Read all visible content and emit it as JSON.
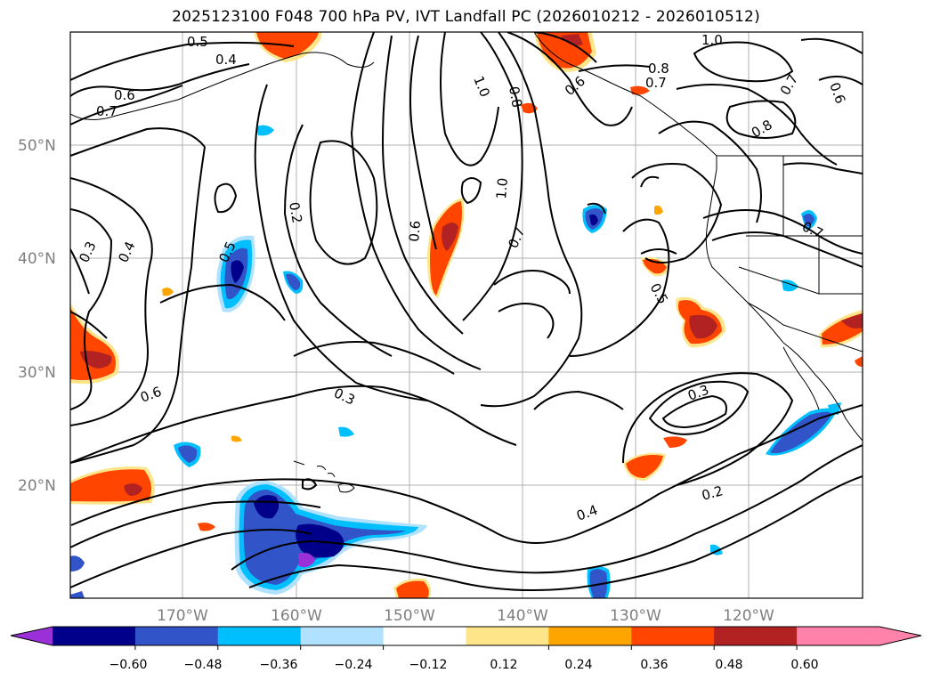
{
  "title": "2025123100 F048 700 hPa PV, IVT Landfall PC (2026010212 - 2026010512)",
  "lat_labels": [
    "50°N",
    "40°N",
    "30°N",
    "20°N"
  ],
  "lon_labels": [
    "170°W",
    "160°W",
    "150°W",
    "140°W",
    "130°W",
    "120°W"
  ],
  "contour_labels": [
    "0.5",
    "0.4",
    "0.6",
    "0.7",
    "1.0",
    "0.8",
    "0.7",
    "0.6",
    "0.7",
    "0.6",
    "1.0",
    "0.8",
    "0.8",
    "0.2",
    "0.6",
    "1.0",
    "0.7",
    "0.3",
    "0.4",
    "0.5",
    "0.5",
    "0.6",
    "0.3",
    "0.3",
    "0.4",
    "0.2",
    "0.7"
  ],
  "colorbar": {
    "ticks": [
      "−0.60",
      "−0.48",
      "−0.36",
      "−0.24",
      "−0.12",
      "0.12",
      "0.24",
      "0.36",
      "0.48",
      "0.60"
    ],
    "colors": [
      "#9b30d9",
      "#00008b",
      "#3154c8",
      "#00bfff",
      "#b0e2ff",
      "#ffffff",
      "#ffe58a",
      "#ffa500",
      "#ff4500",
      "#b22222",
      "#ff82ab",
      "#ff82ab"
    ]
  }
}
